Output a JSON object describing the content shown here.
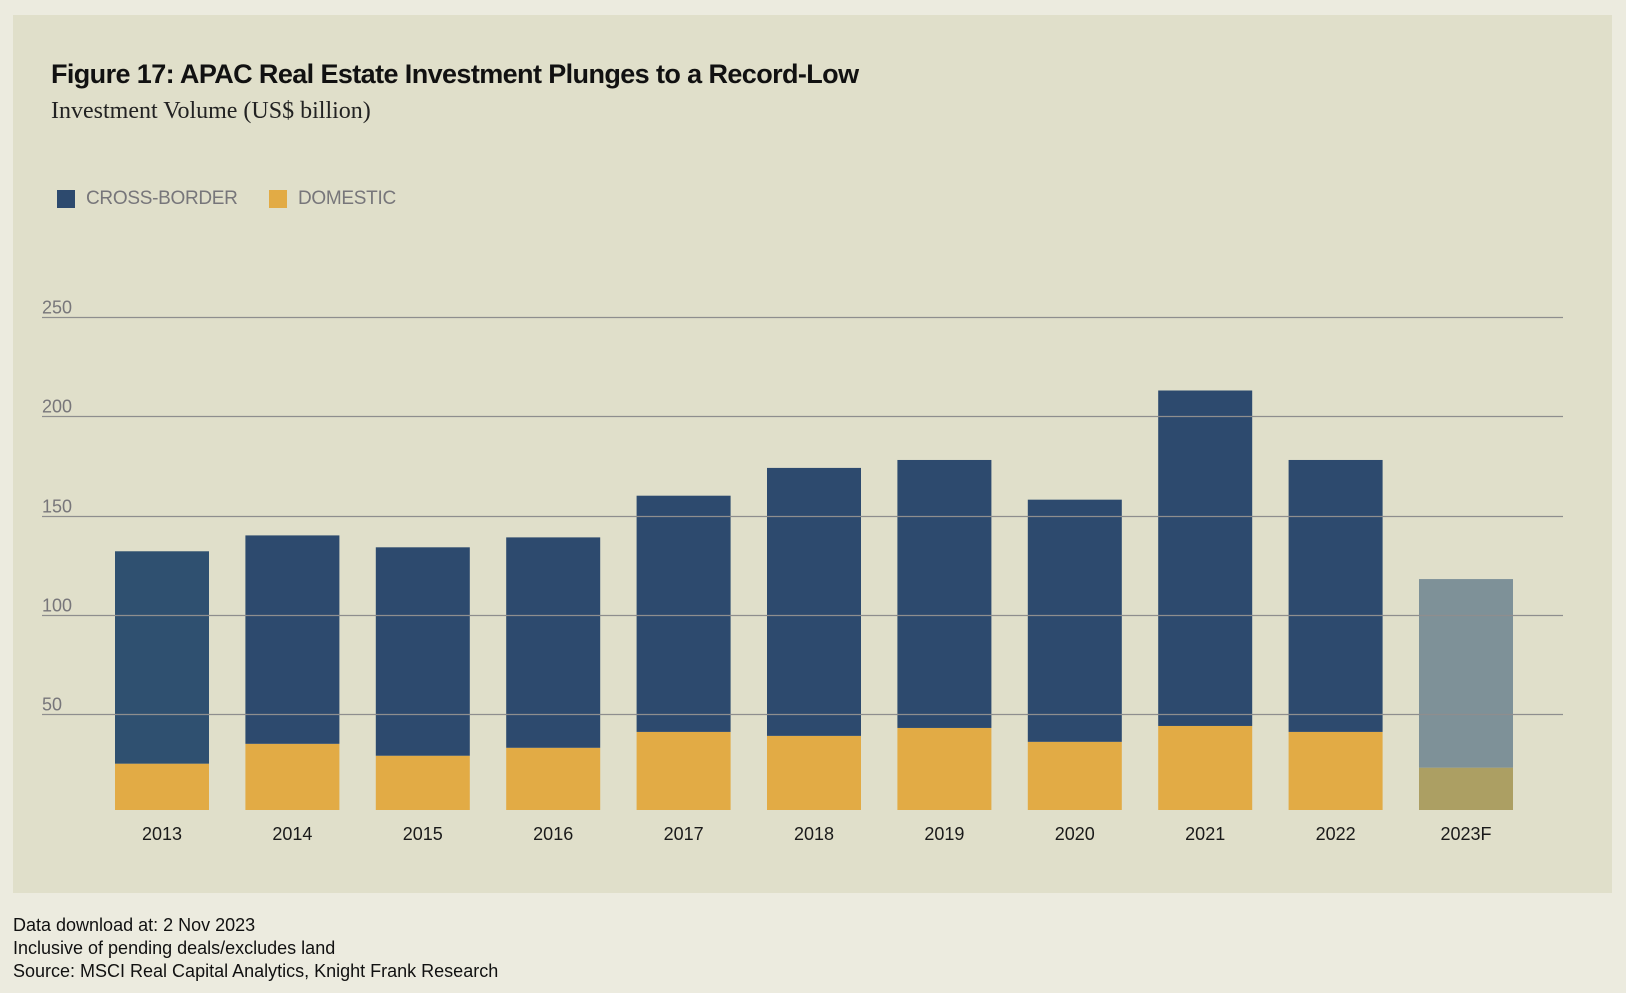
{
  "header": {
    "title": "Figure 17: APAC Real Estate Investment Plunges to a Record-Low",
    "subtitle": "Investment Volume (US$ billion)"
  },
  "legend": [
    {
      "label": "CROSS-BORDER",
      "color": "#2d4a6e"
    },
    {
      "label": "DOMESTIC",
      "color": "#e2ab45"
    }
  ],
  "colors": {
    "cross_border": "#2d4a6e",
    "domestic": "#e2ab45",
    "forecast_cross_border": "#7e9198",
    "forecast_domestic": "#ac9f63",
    "grid": "#8e8e8e"
  },
  "footnotes": [
    "Data download at: 2 Nov 2023",
    "Inclusive of pending deals/excludes land",
    "Source: MSCI Real Capital Analytics, Knight Frank Research"
  ],
  "chart_data": {
    "type": "bar",
    "stacked": true,
    "title": "Figure 17: APAC Real Estate Investment Plunges to a Record-Low",
    "subtitle": "Investment Volume (US$ billion)",
    "xlabel": "",
    "ylabel": "Investment Volume (US$ billion)",
    "categories": [
      "2013",
      "2014",
      "2015",
      "2016",
      "2017",
      "2018",
      "2019",
      "2020",
      "2021",
      "2022",
      "2023F"
    ],
    "series": [
      {
        "name": "DOMESTIC",
        "values": [
          25,
          35,
          29,
          33,
          41,
          39,
          43,
          36,
          44,
          41,
          23
        ]
      },
      {
        "name": "CROSS-BORDER",
        "values": [
          107,
          105,
          105,
          106,
          119,
          135,
          135,
          122,
          169,
          137,
          95
        ]
      }
    ],
    "forecast_categories": [
      "2023F"
    ],
    "ylim": [
      0,
      250
    ],
    "yticks": [
      50,
      100,
      150,
      200,
      250
    ],
    "ytick_labels": [
      "50",
      "100",
      "150",
      "200",
      "250"
    ],
    "grid": true,
    "legend_position": "top-left"
  }
}
